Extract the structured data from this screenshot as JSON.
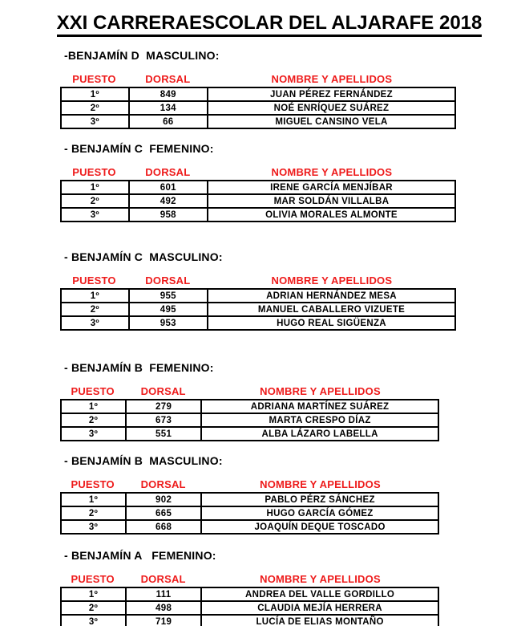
{
  "page": {
    "title": "XXI CARRERAESCOLAR DEL ALJARAFE 2018"
  },
  "colors": {
    "accent_red": "#ee1b1b",
    "text_black": "#000000",
    "background": "#ffffff",
    "table_border": "#000000"
  },
  "columns": {
    "puesto": "PUESTO",
    "dorsal": "DORSAL",
    "nombre": "NOMBRE Y APELLIDOS"
  },
  "sections": [
    {
      "heading": "-BENJAMÍN D  MASCULINO:",
      "rows": [
        {
          "puesto": "1º",
          "dorsal": "849",
          "nombre": "JUAN PÉREZ FERNÁNDEZ"
        },
        {
          "puesto": "2º",
          "dorsal": "134",
          "nombre": "NOÉ ENRÍQUEZ SUÁREZ"
        },
        {
          "puesto": "3º",
          "dorsal": "66",
          "nombre": "MIGUEL CANSINO VELA"
        }
      ]
    },
    {
      "heading": "- BENJAMÍN C  FEMENINO:",
      "rows": [
        {
          "puesto": "1º",
          "dorsal": "601",
          "nombre": "IRENE GARCÍA MENJÍBAR"
        },
        {
          "puesto": "2º",
          "dorsal": "492",
          "nombre": "MAR SOLDÁN VILLALBA"
        },
        {
          "puesto": "3º",
          "dorsal": "958",
          "nombre": "OLIVIA MORALES ALMONTE"
        }
      ]
    },
    {
      "heading": "- BENJAMÍN C  MASCULINO:",
      "rows": [
        {
          "puesto": "1º",
          "dorsal": "955",
          "nombre": "ADRIAN HERNÁNDEZ MESA"
        },
        {
          "puesto": "2º",
          "dorsal": "495",
          "nombre": "MANUEL CABALLERO VIZUETE"
        },
        {
          "puesto": "3º",
          "dorsal": "953",
          "nombre": "HUGO REAL SIGÜENZA"
        }
      ]
    },
    {
      "heading": "- BENJAMÍN B  FEMENINO:",
      "rows": [
        {
          "puesto": "1º",
          "dorsal": "279",
          "nombre": "ADRIANA MARTÍNEZ SUÁREZ"
        },
        {
          "puesto": "2º",
          "dorsal": "673",
          "nombre": "MARTA CRESPO DÍAZ"
        },
        {
          "puesto": "3º",
          "dorsal": "551",
          "nombre": "ALBA LÁZARO LABELLA"
        }
      ]
    },
    {
      "heading": "- BENJAMÍN B  MASCULINO:",
      "rows": [
        {
          "puesto": "1º",
          "dorsal": "902",
          "nombre": "PABLO PÉRZ SÁNCHEZ"
        },
        {
          "puesto": "2º",
          "dorsal": "665",
          "nombre": "HUGO GARCÍA GÓMEZ"
        },
        {
          "puesto": "3º",
          "dorsal": "668",
          "nombre": "JOAQUÍN DEQUE TOSCADO"
        }
      ]
    },
    {
      "heading": "- BENJAMÍN A   FEMENINO:",
      "rows": [
        {
          "puesto": "1º",
          "dorsal": "111",
          "nombre": "ANDREA DEL VALLE GORDILLO"
        },
        {
          "puesto": "2º",
          "dorsal": "498",
          "nombre": "CLAUDIA MEJÍA HERRERA"
        },
        {
          "puesto": "3º",
          "dorsal": "719",
          "nombre": "LUCÍA DE ELIAS MONTAÑO"
        }
      ]
    }
  ]
}
